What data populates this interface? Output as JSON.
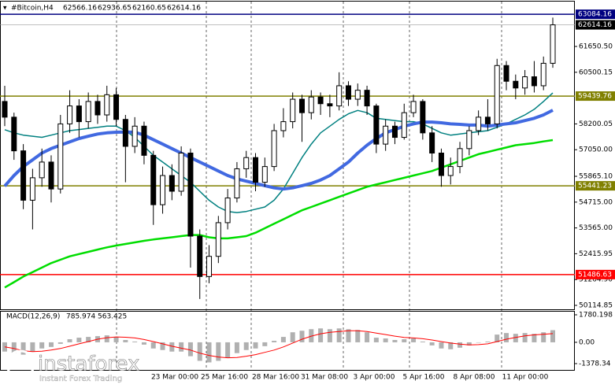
{
  "chart_data": {
    "type": "candlestick",
    "header": {
      "symbol": "#Bitcoin,H4",
      "ohlc": [
        62566.16,
        62936.65,
        62160.65,
        62614.16
      ]
    },
    "open": [
      59200,
      58500,
      57000,
      54800,
      55800,
      56500,
      55300,
      58200,
      59000,
      58300,
      59200,
      58600,
      59500,
      58400,
      57200,
      58100,
      56800,
      54600,
      55900,
      55200,
      56900,
      53200,
      51400,
      52300,
      53800,
      54900,
      56200,
      56700,
      55600,
      56300,
      57900,
      58300,
      59300,
      58700,
      59400,
      59100,
      59000,
      59900,
      59300,
      59700,
      59000,
      57300,
      58100,
      57600,
      58700,
      59200,
      57800,
      56900,
      55900,
      56300,
      57100,
      57900,
      58500,
      58200,
      60800,
      60100,
      59800,
      60300,
      59900,
      60900
    ],
    "high": [
      59900,
      58700,
      57300,
      56200,
      57100,
      56800,
      58600,
      59700,
      59300,
      59600,
      59500,
      59900,
      59800,
      58600,
      58500,
      58300,
      57000,
      56300,
      56400,
      57200,
      57100,
      53500,
      52800,
      54100,
      55300,
      56500,
      57000,
      56900,
      56700,
      58200,
      58900,
      59600,
      59500,
      59700,
      59600,
      59500,
      60500,
      60100,
      60000,
      59900,
      59100,
      58400,
      58300,
      59100,
      59500,
      59300,
      58100,
      57100,
      56700,
      57400,
      58100,
      58800,
      59300,
      61100,
      61000,
      60400,
      60600,
      61000,
      61200,
      62936.65
    ],
    "low": [
      58100,
      56600,
      54400,
      53500,
      55400,
      54700,
      55100,
      57800,
      57600,
      58000,
      58200,
      58300,
      58100,
      55600,
      56900,
      56400,
      53700,
      54200,
      54800,
      55000,
      51800,
      50400,
      51100,
      52000,
      53500,
      54700,
      55800,
      55200,
      55400,
      56100,
      57600,
      58000,
      57400,
      58400,
      58600,
      58500,
      58800,
      59000,
      59000,
      58600,
      56900,
      57000,
      57300,
      57500,
      58500,
      57500,
      56500,
      55400,
      55500,
      56000,
      56800,
      57700,
      57900,
      58000,
      59700,
      59300,
      59500,
      59600,
      59700,
      60700
    ],
    "close": [
      58500,
      57000,
      54800,
      55800,
      56500,
      55300,
      58200,
      59000,
      58300,
      59200,
      58600,
      59500,
      58400,
      57200,
      58100,
      56800,
      54600,
      55900,
      55200,
      56900,
      53200,
      51400,
      52300,
      53800,
      54900,
      56200,
      56700,
      55600,
      56300,
      57900,
      58300,
      59300,
      58700,
      59400,
      59100,
      59000,
      59900,
      59300,
      59700,
      59000,
      57300,
      58100,
      57600,
      58700,
      59200,
      57800,
      56900,
      55900,
      56300,
      57100,
      57900,
      58500,
      58200,
      60800,
      60100,
      59800,
      60300,
      59900,
      60900,
      62614.16
    ],
    "series": [
      {
        "color": "#008080",
        "values": [
          57940,
          57800,
          57700,
          57650,
          57600,
          57700,
          57800,
          57900,
          57950,
          58000,
          58050,
          58100,
          58100,
          57900,
          57600,
          57200,
          56800,
          56500,
          56200,
          55900,
          55600,
          55200,
          54800,
          54500,
          54300,
          54250,
          54300,
          54400,
          54500,
          54800,
          55300,
          56000,
          56700,
          57300,
          57800,
          58100,
          58400,
          58650,
          58800,
          58700,
          58450,
          58400,
          58350,
          58300,
          58300,
          58200,
          58000,
          57800,
          57700,
          57750,
          57800,
          57850,
          57900,
          58050,
          58200,
          58400,
          58600,
          58850,
          59200,
          59580
        ]
      },
      {
        "color": "#4169e1",
        "values": [
          55430,
          55900,
          56300,
          56600,
          56900,
          57100,
          57250,
          57400,
          57550,
          57650,
          57750,
          57800,
          57830,
          57840,
          57830,
          57700,
          57500,
          57300,
          57100,
          56900,
          56700,
          56500,
          56300,
          56100,
          55900,
          55750,
          55650,
          55550,
          55450,
          55350,
          55300,
          55350,
          55450,
          55550,
          55700,
          55900,
          56200,
          56500,
          56900,
          57250,
          57550,
          57800,
          57950,
          58100,
          58200,
          58280,
          58280,
          58250,
          58200,
          58180,
          58150,
          58150,
          58100,
          58150,
          58200,
          58250,
          58350,
          58450,
          58600,
          58810
        ]
      },
      {
        "color": "#00dd00",
        "values": [
          50910,
          51150,
          51400,
          51600,
          51800,
          52000,
          52150,
          52300,
          52400,
          52500,
          52600,
          52700,
          52780,
          52850,
          52920,
          52990,
          53050,
          53100,
          53150,
          53200,
          53250,
          53250,
          53150,
          53100,
          53100,
          53150,
          53200,
          53350,
          53550,
          53750,
          53950,
          54150,
          54350,
          54500,
          54650,
          54800,
          54950,
          55100,
          55250,
          55400,
          55500,
          55600,
          55700,
          55800,
          55900,
          56000,
          56100,
          56250,
          56400,
          56550,
          56700,
          56850,
          56950,
          57050,
          57150,
          57250,
          57300,
          57350,
          57420,
          57480
        ]
      }
    ],
    "ylim": [
      49940,
      63650
    ],
    "yticks": [
      {
        "value": 61650.5,
        "label": "61650.50"
      },
      60500.15,
      58200.05,
      {
        "value": 57050,
        "label": "57050.00"
      },
      {
        "value": 55865.1,
        "label": "55865.10"
      },
      {
        "value": 54715,
        "label": "54715.00"
      },
      {
        "value": 53565,
        "label": "53565.00"
      },
      52415.95,
      {
        "value": 51264.9,
        "label": "51264.90"
      },
      50114.85
    ],
    "levels": [
      {
        "value": 63084.16,
        "color": "#000080"
      },
      {
        "value": 59439.76,
        "color": "#808000"
      },
      {
        "value": 55441.23,
        "color": "#808000"
      },
      {
        "value": 51486.63,
        "color": "#ff0000"
      }
    ],
    "last_price": 62614.16,
    "x_labels": [
      "23 Mar 00:00",
      "25 Mar 16:00",
      "28 Mar 16:00",
      "31 Mar 08:00",
      "3 Apr 00:00",
      "5 Apr 16:00",
      "8 Apr 08:00",
      "11 Apr 00:00"
    ],
    "macd": {
      "name": "MACD(12,26,9)",
      "readout": [
        785.974,
        563.425
      ],
      "histogram": [
        -600,
        -700,
        -800,
        -600,
        -400,
        -300,
        -100,
        200,
        300,
        350,
        400,
        450,
        350,
        150,
        50,
        -150,
        -400,
        -500,
        -600,
        -600,
        -900,
        -1200,
        -1300,
        -1200,
        -1000,
        -700,
        -500,
        -400,
        -250,
        100,
        350,
        650,
        750,
        850,
        900,
        850,
        900,
        850,
        800,
        650,
        300,
        250,
        150,
        200,
        250,
        50,
        -200,
        -400,
        -450,
        -350,
        -200,
        0,
        50,
        500,
        600,
        550,
        600,
        550,
        650,
        785.974
      ],
      "signal": [
        -300,
        -400,
        -550,
        -600,
        -580,
        -500,
        -400,
        -250,
        -100,
        50,
        200,
        300,
        350,
        330,
        280,
        180,
        50,
        -100,
        -250,
        -380,
        -500,
        -700,
        -850,
        -950,
        -1000,
        -980,
        -900,
        -800,
        -650,
        -500,
        -300,
        -50,
        200,
        400,
        550,
        650,
        700,
        750,
        750,
        700,
        600,
        500,
        400,
        320,
        280,
        230,
        150,
        50,
        -50,
        -120,
        -170,
        -150,
        -100,
        50,
        200,
        320,
        420,
        480,
        520,
        563.425
      ],
      "signal_color": "#ff0000",
      "ylim": [
        -1786,
        1984
      ],
      "yticks": [
        1780.198,
        {
          "value": 0,
          "label": "0.00"
        },
        -1378.34
      ]
    },
    "logo": {
      "brand": "instaforex",
      "tagline": "Instant Forex Trading"
    }
  }
}
